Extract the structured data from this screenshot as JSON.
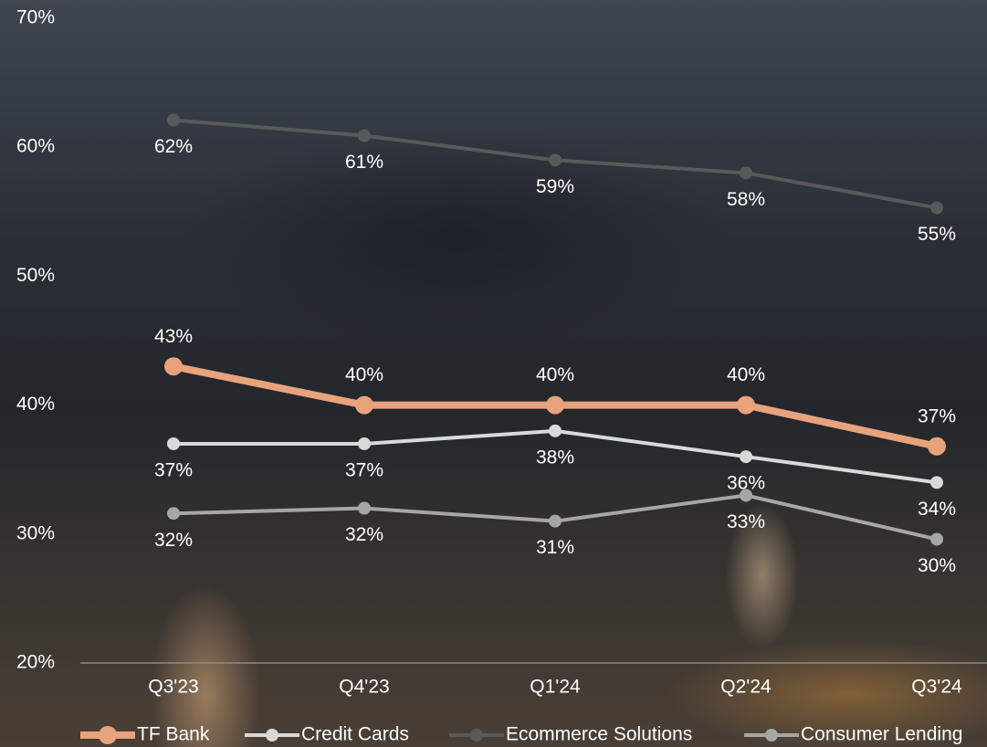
{
  "chart_data": {
    "type": "line",
    "categories": [
      "Q3'23",
      "Q4'23",
      "Q1'24",
      "Q2'24",
      "Q3'24"
    ],
    "ylim": [
      20,
      70
    ],
    "yticks": [
      {
        "value": 20,
        "label": "20%"
      },
      {
        "value": 30,
        "label": "30%"
      },
      {
        "value": 40,
        "label": "40%"
      },
      {
        "value": 50,
        "label": "50%"
      },
      {
        "value": 60,
        "label": "60%"
      },
      {
        "value": 70,
        "label": "70%"
      }
    ],
    "grid": false,
    "legend": "bottom",
    "series": [
      {
        "name": "TF Bank",
        "color": "#e8a27c",
        "values": [
          43,
          40,
          40,
          40,
          36.8
        ],
        "value_labels": [
          "43%",
          "40%",
          "40%",
          "40%",
          "37%"
        ]
      },
      {
        "name": "Credit Cards",
        "color": "#d9d9d9",
        "values": [
          37,
          37,
          38,
          36,
          34
        ],
        "value_labels": [
          "37%",
          "37%",
          "38%",
          "36%",
          "34%"
        ]
      },
      {
        "name": "Ecommerce Solutions",
        "color": "#595959",
        "values": [
          62.1,
          60.9,
          59,
          58,
          55.3
        ],
        "value_labels": [
          "62%",
          "61%",
          "59%",
          "58%",
          "55%"
        ]
      },
      {
        "name": "Consumer Lending",
        "color": "#a6a6a6",
        "values": [
          31.6,
          32,
          31,
          33,
          29.6
        ],
        "value_labels": [
          "32%",
          "32%",
          "31%",
          "33%",
          "30%"
        ]
      }
    ]
  }
}
